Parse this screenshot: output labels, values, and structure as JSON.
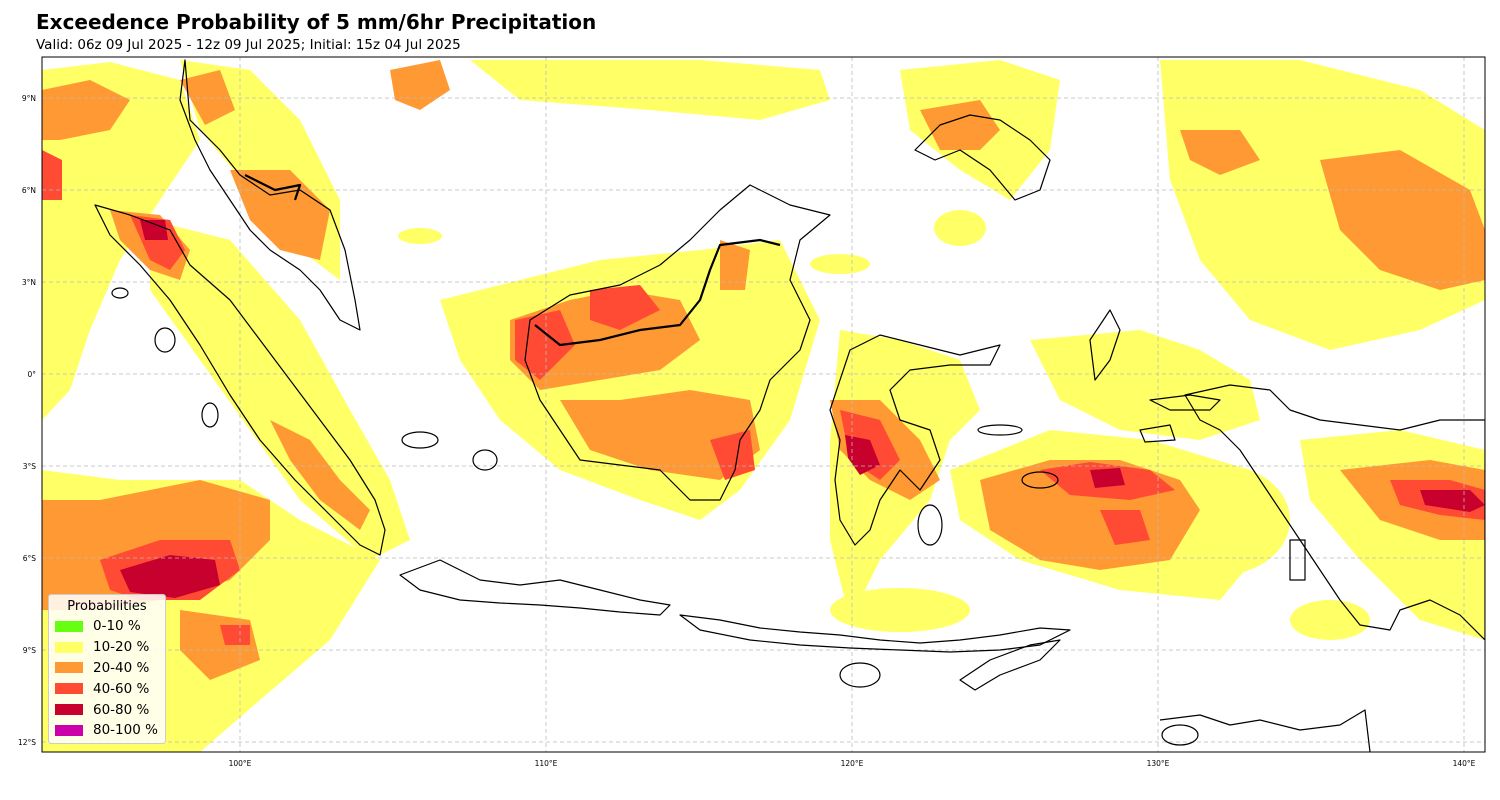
{
  "title": "Exceedence Probability of 5 mm/6hr Precipitation",
  "subtitle": "Valid: 06z 09 Jul 2025 - 12z 09 Jul 2025; Initial: 15z 04 Jul 2025",
  "axes": {
    "lon_ticks": [
      "100°E",
      "110°E",
      "120°E",
      "130°E",
      "140°E"
    ],
    "lat_ticks": [
      "9°N",
      "6°N",
      "3°N",
      "0°",
      "3°S",
      "6°S",
      "9°S",
      "12°S"
    ],
    "lon_range": [
      93.5,
      140.7
    ],
    "lat_range": [
      -12.3,
      10.3
    ],
    "grid": "dashed"
  },
  "legend": {
    "title": "Probabilities",
    "placement": "lower-left",
    "items": [
      {
        "label": "0-10 %",
        "color": "#66ff11"
      },
      {
        "label": "10-20 %",
        "color": "#ffff66"
      },
      {
        "label": "20-40 %",
        "color": "#ff9933"
      },
      {
        "label": "40-60 %",
        "color": "#ff4b33"
      },
      {
        "label": "60-80 %",
        "color": "#c8002d"
      },
      {
        "label": "80-100 %",
        "color": "#cc00aa"
      }
    ]
  },
  "map_colors": {
    "land_outline": "#000000",
    "background": "#ffffff",
    "grid": "#bbbbbb"
  }
}
